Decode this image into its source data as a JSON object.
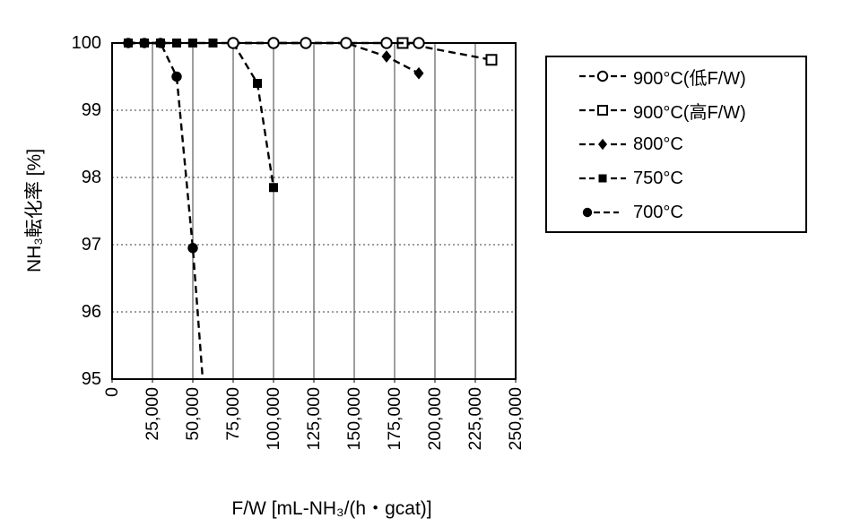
{
  "figure": {
    "background": "#ffffff",
    "line_color": "#000000"
  },
  "chart_data": {
    "type": "line",
    "title": "",
    "xlabel": "F/W [mL-NH₃/(h・gcat)]",
    "ylabel": "NH₃転化率 [%]",
    "xlim": [
      0,
      250000
    ],
    "ylim": [
      95,
      100
    ],
    "grid": true,
    "grid_x_step": 25000,
    "grid_y_step": 1,
    "legend_position": "outside-right-top",
    "line_style": "dashed",
    "x_ticks": [
      0,
      25000,
      50000,
      75000,
      100000,
      125000,
      150000,
      175000,
      200000,
      225000,
      250000
    ],
    "x_tick_labels": [
      "0",
      "25,000",
      "50,000",
      "75,000",
      "100,000",
      "125,000",
      "150,000",
      "175,000",
      "200,000",
      "225,000",
      "250,000"
    ],
    "y_ticks": [
      95,
      96,
      97,
      98,
      99,
      100
    ],
    "y_tick_labels": [
      "95",
      "96",
      "97",
      "98",
      "99",
      "100"
    ],
    "series": [
      {
        "id": "900c-low-fw",
        "name": "900°C(低F/W)",
        "marker": "circle-open",
        "legend_swatch": "line-marker-line",
        "points": [
          [
            75000,
            100
          ],
          [
            100000,
            100
          ],
          [
            120000,
            100
          ],
          [
            145000,
            100
          ],
          [
            170000,
            100
          ],
          [
            190000,
            100
          ]
        ]
      },
      {
        "id": "900c-high-fw",
        "name": "900°C(高F/W)",
        "marker": "square-open",
        "legend_swatch": "line-marker-line",
        "points": [
          [
            180000,
            100
          ],
          [
            235000,
            99.75
          ]
        ]
      },
      {
        "id": "800c",
        "name": "800°C",
        "marker": "diamond-filled",
        "legend_swatch": "line-marker-line",
        "points": [
          [
            75000,
            100
          ],
          [
            100000,
            100
          ],
          [
            120000,
            100
          ],
          [
            145000,
            100
          ],
          [
            170000,
            99.8
          ],
          [
            190000,
            99.55
          ]
        ]
      },
      {
        "id": "750c",
        "name": "750°C",
        "marker": "square-filled",
        "legend_swatch": "line-marker-line",
        "points": [
          [
            10000,
            100
          ],
          [
            20000,
            100
          ],
          [
            30000,
            100
          ],
          [
            40000,
            100
          ],
          [
            50000,
            100
          ],
          [
            62500,
            100
          ],
          [
            75000,
            100
          ],
          [
            90000,
            99.4
          ],
          [
            100000,
            97.85
          ]
        ]
      },
      {
        "id": "700c",
        "name": "700°C",
        "marker": "circle-filled",
        "legend_swatch": "marker-line",
        "points": [
          [
            10000,
            100
          ],
          [
            20000,
            100
          ],
          [
            30000,
            100
          ],
          [
            40000,
            99.5
          ],
          [
            50000,
            96.95
          ]
        ],
        "offscale_exit": [
          58000,
          94.4
        ]
      }
    ]
  }
}
